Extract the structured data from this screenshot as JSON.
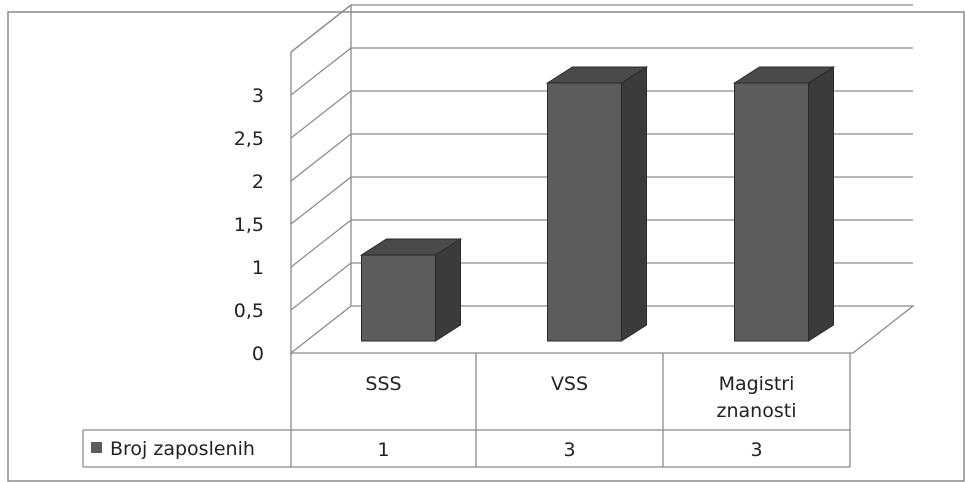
{
  "chart_data": {
    "type": "bar",
    "categories": [
      "SSS",
      "VSS",
      "Magistri znanosti"
    ],
    "category_lines": [
      [
        "SSS"
      ],
      [
        "VSS"
      ],
      [
        "Magistri",
        "znanosti"
      ]
    ],
    "series": [
      {
        "name": "Broj zaposlenih",
        "values": [
          1,
          3,
          3
        ]
      }
    ],
    "value_labels": [
      "1",
      "3",
      "3"
    ],
    "ylim": [
      0,
      3.5
    ],
    "yticks": [
      0,
      0.5,
      1,
      1.5,
      2,
      2.5,
      3
    ],
    "ytick_labels": [
      "0",
      "0,5",
      "1",
      "1,5",
      "2",
      "2,5",
      "3"
    ],
    "grid": true,
    "style": "3d-column",
    "legend": "data-table",
    "colors": {
      "bar_front": "#5c5c5c",
      "bar_side": "#3b3b3b",
      "bar_top": "#4a4a4a",
      "line": "#8a8a8a"
    }
  }
}
